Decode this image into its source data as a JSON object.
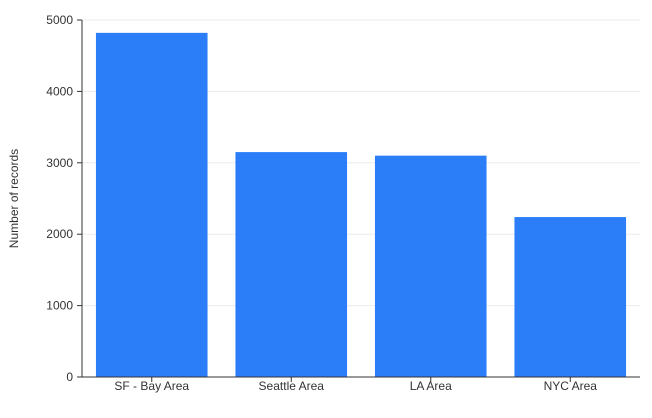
{
  "chart_data": {
    "type": "bar",
    "categories": [
      "SF - Bay Area",
      "Seattle Area",
      "LA Area",
      "NYC Area"
    ],
    "values": [
      4820,
      3150,
      3100,
      2240
    ],
    "title": "",
    "xlabel": "",
    "ylabel": "Number of records",
    "ylim": [
      0,
      5000
    ],
    "yticks": [
      0,
      1000,
      2000,
      3000,
      4000,
      5000
    ],
    "grid": true,
    "legend": "none",
    "bar_color": "#2c7ef8"
  }
}
